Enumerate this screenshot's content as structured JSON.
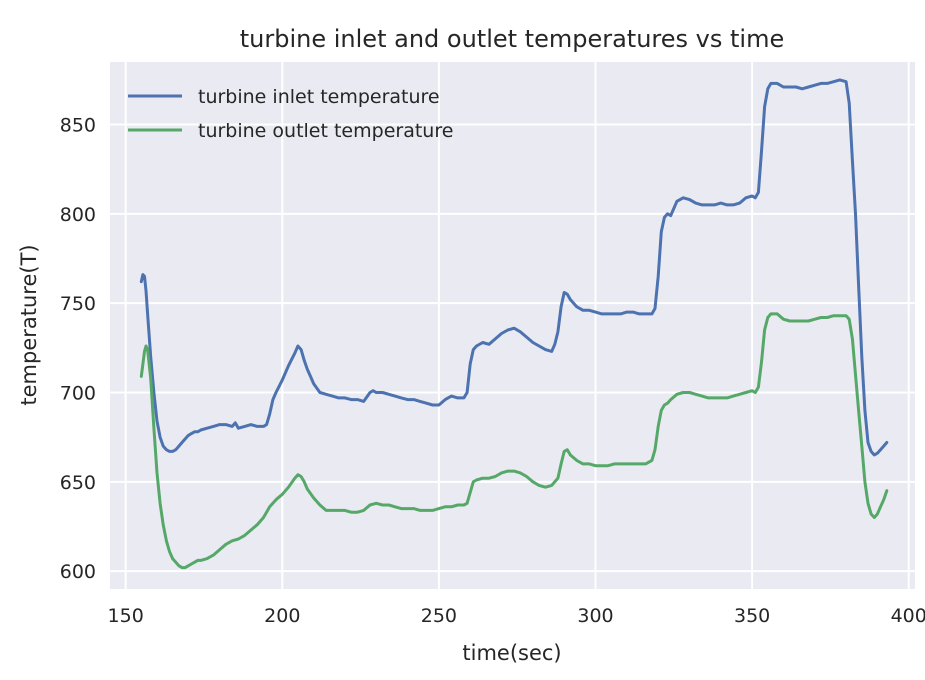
{
  "chart_data": {
    "type": "line",
    "title": "turbine inlet and outlet temperatures vs time",
    "xlabel": "time(sec)",
    "ylabel": "temperature(T)",
    "xlim": [
      145,
      402
    ],
    "ylim": [
      590,
      885
    ],
    "xticks": [
      150,
      200,
      250,
      300,
      350,
      400
    ],
    "yticks": [
      600,
      650,
      700,
      750,
      800,
      850
    ],
    "grid": true,
    "legend": "top-left",
    "series": [
      {
        "name": "turbine inlet temperature",
        "color": "#4c72b0",
        "x": [
          155,
          155.5,
          156,
          156.5,
          157,
          158,
          159,
          160,
          161,
          162,
          163,
          164,
          165,
          166,
          167,
          168,
          169,
          170,
          171,
          172,
          173,
          174,
          176,
          178,
          180,
          182,
          184,
          185,
          186,
          188,
          190,
          192,
          194,
          195,
          196,
          197,
          198,
          200,
          202,
          204,
          205,
          206,
          207,
          208,
          209,
          210,
          212,
          214,
          216,
          218,
          220,
          222,
          224,
          226,
          228,
          229,
          230,
          232,
          234,
          236,
          238,
          240,
          242,
          244,
          246,
          248,
          250,
          252,
          254,
          256,
          258,
          259,
          260,
          261,
          262,
          264,
          266,
          268,
          270,
          272,
          274,
          276,
          278,
          280,
          282,
          284,
          286,
          287,
          288,
          289,
          290,
          291,
          292,
          294,
          296,
          298,
          300,
          302,
          304,
          306,
          308,
          310,
          312,
          314,
          316,
          318,
          319,
          320,
          321,
          322,
          323,
          324,
          326,
          328,
          330,
          332,
          334,
          336,
          338,
          340,
          342,
          344,
          346,
          348,
          350,
          351,
          352,
          353,
          354,
          355,
          356,
          358,
          360,
          362,
          364,
          366,
          368,
          370,
          372,
          374,
          376,
          378,
          380,
          381,
          382,
          383,
          384,
          385,
          386,
          387,
          388,
          389,
          390,
          391,
          392,
          393
        ],
        "y": [
          762,
          766,
          765,
          757,
          744,
          720,
          700,
          684,
          675,
          670,
          668,
          667,
          667,
          668,
          670,
          672,
          674,
          676,
          677,
          678,
          678,
          679,
          680,
          681,
          682,
          682,
          681,
          683,
          680,
          681,
          682,
          681,
          681,
          682,
          688,
          696,
          700,
          707,
          715,
          722,
          726,
          724,
          718,
          713,
          709,
          705,
          700,
          699,
          698,
          697,
          697,
          696,
          696,
          695,
          700,
          701,
          700,
          700,
          699,
          698,
          697,
          696,
          696,
          695,
          694,
          693,
          693,
          696,
          698,
          697,
          697,
          700,
          716,
          724,
          726,
          728,
          727,
          730,
          733,
          735,
          736,
          734,
          731,
          728,
          726,
          724,
          723,
          727,
          734,
          748,
          756,
          755,
          752,
          748,
          746,
          746,
          745,
          744,
          744,
          744,
          744,
          745,
          745,
          744,
          744,
          744,
          747,
          765,
          790,
          798,
          800,
          799,
          807,
          809,
          808,
          806,
          805,
          805,
          805,
          806,
          805,
          805,
          806,
          809,
          810,
          809,
          812,
          835,
          860,
          870,
          873,
          873,
          871,
          871,
          871,
          870,
          871,
          872,
          873,
          873,
          874,
          875,
          874,
          862,
          830,
          800,
          760,
          720,
          690,
          672,
          667,
          665,
          666,
          668,
          670,
          672
        ]
      },
      {
        "name": "turbine outlet temperature",
        "color": "#55a868",
        "x": [
          155,
          155.5,
          156,
          156.5,
          157,
          158,
          159,
          160,
          161,
          162,
          163,
          164,
          165,
          166,
          167,
          168,
          169,
          170,
          171,
          172,
          173,
          174,
          176,
          178,
          180,
          182,
          184,
          186,
          188,
          190,
          192,
          194,
          196,
          198,
          200,
          202,
          204,
          205,
          206,
          207,
          208,
          210,
          212,
          214,
          216,
          218,
          220,
          222,
          224,
          226,
          228,
          230,
          232,
          234,
          236,
          238,
          240,
          242,
          244,
          246,
          248,
          250,
          252,
          254,
          256,
          258,
          259,
          260,
          261,
          262,
          264,
          266,
          268,
          270,
          272,
          274,
          276,
          278,
          280,
          282,
          284,
          286,
          288,
          289,
          290,
          291,
          292,
          294,
          296,
          298,
          300,
          302,
          304,
          306,
          308,
          310,
          312,
          314,
          316,
          318,
          319,
          320,
          321,
          322,
          323,
          324,
          326,
          328,
          330,
          332,
          334,
          336,
          338,
          340,
          342,
          344,
          346,
          348,
          350,
          351,
          352,
          353,
          354,
          355,
          356,
          358,
          360,
          362,
          364,
          366,
          368,
          370,
          372,
          374,
          376,
          378,
          380,
          381,
          382,
          383,
          384,
          385,
          386,
          387,
          388,
          389,
          390,
          391,
          392,
          393
        ],
        "y": [
          709,
          716,
          723,
          726,
          724,
          708,
          680,
          655,
          638,
          626,
          617,
          611,
          607,
          605,
          603,
          602,
          602,
          603,
          604,
          605,
          606,
          606,
          607,
          609,
          612,
          615,
          617,
          618,
          620,
          623,
          626,
          630,
          636,
          640,
          643,
          647,
          652,
          654,
          653,
          650,
          646,
          641,
          637,
          634,
          634,
          634,
          634,
          633,
          633,
          634,
          637,
          638,
          637,
          637,
          636,
          635,
          635,
          635,
          634,
          634,
          634,
          635,
          636,
          636,
          637,
          637,
          638,
          644,
          650,
          651,
          652,
          652,
          653,
          655,
          656,
          656,
          655,
          653,
          650,
          648,
          647,
          648,
          652,
          660,
          667,
          668,
          665,
          662,
          660,
          660,
          659,
          659,
          659,
          660,
          660,
          660,
          660,
          660,
          660,
          662,
          668,
          681,
          690,
          693,
          694,
          696,
          699,
          700,
          700,
          699,
          698,
          697,
          697,
          697,
          697,
          698,
          699,
          700,
          701,
          700,
          703,
          717,
          735,
          742,
          744,
          744,
          741,
          740,
          740,
          740,
          740,
          741,
          742,
          742,
          743,
          743,
          743,
          741,
          730,
          710,
          690,
          670,
          650,
          638,
          632,
          630,
          632,
          636,
          640,
          645
        ]
      }
    ]
  }
}
